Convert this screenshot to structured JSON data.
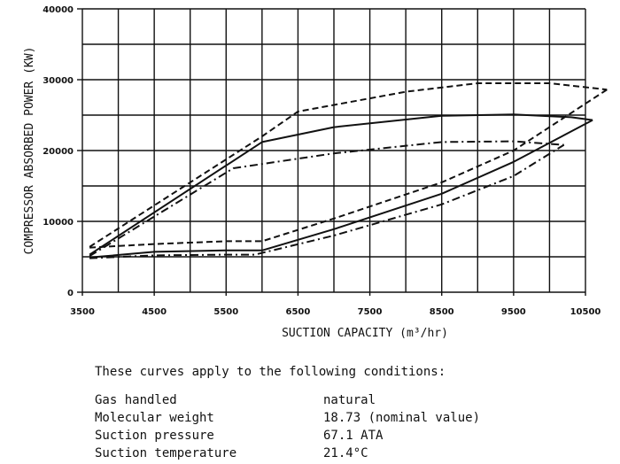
{
  "chart_data": {
    "type": "line",
    "xlabel": "SUCTION CAPACITY (m³/hr)",
    "ylabel": "COMPRESSOR ABSORBED POWER (KW)",
    "xlim": [
      3500,
      10500
    ],
    "ylim": [
      0,
      40000
    ],
    "x_ticks": [
      "3500",
      "4500",
      "5500",
      "6500",
      "7500",
      "8500",
      "9500",
      "10500"
    ],
    "y_ticks": [
      "0",
      "10000",
      "20000",
      "30000",
      "40000"
    ],
    "grid": true,
    "series": [
      {
        "style": "dashed",
        "upper": [
          [
            3600,
            6400
          ],
          [
            6000,
            22000
          ],
          [
            6500,
            25500
          ],
          [
            8000,
            28300
          ],
          [
            9000,
            29500
          ],
          [
            10000,
            29500
          ],
          [
            10800,
            28600
          ]
        ],
        "lower": [
          [
            3600,
            6300
          ],
          [
            4500,
            6800
          ],
          [
            5500,
            7200
          ],
          [
            6000,
            7200
          ],
          [
            7000,
            10400
          ],
          [
            8500,
            15500
          ],
          [
            9500,
            20000
          ],
          [
            10800,
            28600
          ]
        ]
      },
      {
        "style": "solid",
        "upper": [
          [
            3600,
            5300
          ],
          [
            6000,
            21200
          ],
          [
            7000,
            23300
          ],
          [
            8500,
            24900
          ],
          [
            9500,
            25100
          ],
          [
            10300,
            24700
          ],
          [
            10600,
            24300
          ]
        ],
        "lower": [
          [
            3600,
            4900
          ],
          [
            4500,
            5700
          ],
          [
            5500,
            5900
          ],
          [
            6000,
            5900
          ],
          [
            7000,
            8900
          ],
          [
            8500,
            13900
          ],
          [
            9500,
            18400
          ],
          [
            10600,
            24300
          ]
        ]
      },
      {
        "style": "dashdot",
        "upper": [
          [
            3600,
            5100
          ],
          [
            5600,
            17500
          ],
          [
            7000,
            19600
          ],
          [
            8500,
            21200
          ],
          [
            9500,
            21300
          ],
          [
            10200,
            20800
          ]
        ],
        "lower": [
          [
            3600,
            4800
          ],
          [
            4500,
            5200
          ],
          [
            5500,
            5300
          ],
          [
            5900,
            5300
          ],
          [
            7000,
            8000
          ],
          [
            8500,
            12400
          ],
          [
            9500,
            16400
          ],
          [
            10200,
            20800
          ]
        ]
      }
    ]
  },
  "notes": {
    "heading": "These curves apply to the following conditions:",
    "rows": [
      {
        "label": "Gas handled",
        "value": "natural"
      },
      {
        "label": "Molecular weight",
        "value": "18.73 (nominal value)"
      },
      {
        "label": "Suction pressure",
        "value": "67.1 ATA"
      },
      {
        "label": "Suction temperature",
        "value": "21.4°C"
      }
    ]
  }
}
